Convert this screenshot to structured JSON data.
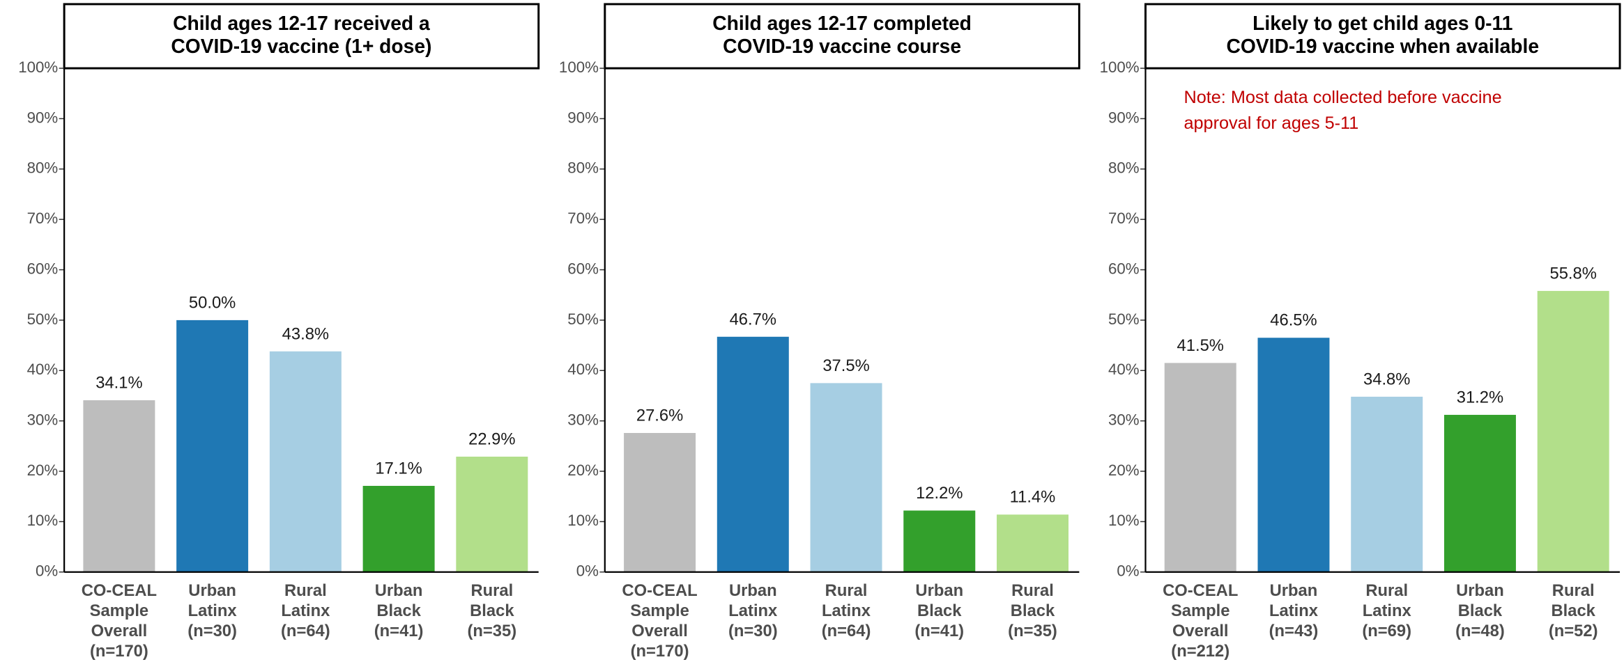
{
  "chart_data": [
    {
      "type": "bar",
      "title": [
        "Child ages 12-17 received a",
        "COVID-19 vaccine (1+ dose)"
      ],
      "categories": [
        [
          "CO-CEAL",
          "Sample",
          "Overall",
          "(n=170)"
        ],
        [
          "Urban",
          "Latinx",
          "(n=30)"
        ],
        [
          "Rural",
          "Latinx",
          "(n=64)"
        ],
        [
          "Urban",
          "Black",
          "(n=41)"
        ],
        [
          "Rural",
          "Black",
          "(n=35)"
        ]
      ],
      "values": [
        34.1,
        50.0,
        43.8,
        17.1,
        22.9
      ],
      "value_labels": [
        "34.1%",
        "50.0%",
        "43.8%",
        "17.1%",
        "22.9%"
      ],
      "colors": [
        "#bdbdbd",
        "#1f78b4",
        "#a6cee3",
        "#33a02c",
        "#b2df8a"
      ],
      "ylim": [
        0,
        100
      ],
      "yticks": [
        {
          "value": 0,
          "label": "0%"
        },
        {
          "value": 10,
          "label": "10%"
        },
        {
          "value": 20,
          "label": "20%"
        },
        {
          "value": 30,
          "label": "30%"
        },
        {
          "value": 40,
          "label": "40%"
        },
        {
          "value": 50,
          "label": "50%"
        },
        {
          "value": 60,
          "label": "60%"
        },
        {
          "value": 70,
          "label": "70%"
        },
        {
          "value": 80,
          "label": "80%"
        },
        {
          "value": 90,
          "label": "90%"
        },
        {
          "value": 100,
          "label": "100%"
        }
      ]
    },
    {
      "type": "bar",
      "title": [
        "Child ages 12-17 completed",
        "COVID-19 vaccine course"
      ],
      "categories": [
        [
          "CO-CEAL",
          "Sample",
          "Overall",
          "(n=170)"
        ],
        [
          "Urban",
          "Latinx",
          "(n=30)"
        ],
        [
          "Rural",
          "Latinx",
          "(n=64)"
        ],
        [
          "Urban",
          "Black",
          "(n=41)"
        ],
        [
          "Rural",
          "Black",
          "(n=35)"
        ]
      ],
      "values": [
        27.6,
        46.7,
        37.5,
        12.2,
        11.4
      ],
      "value_labels": [
        "27.6%",
        "46.7%",
        "37.5%",
        "12.2%",
        "11.4%"
      ],
      "colors": [
        "#bdbdbd",
        "#1f78b4",
        "#a6cee3",
        "#33a02c",
        "#b2df8a"
      ],
      "ylim": [
        0,
        100
      ],
      "yticks": [
        {
          "value": 0,
          "label": "0%"
        },
        {
          "value": 10,
          "label": "10%"
        },
        {
          "value": 20,
          "label": "20%"
        },
        {
          "value": 30,
          "label": "30%"
        },
        {
          "value": 40,
          "label": "40%"
        },
        {
          "value": 50,
          "label": "50%"
        },
        {
          "value": 60,
          "label": "60%"
        },
        {
          "value": 70,
          "label": "70%"
        },
        {
          "value": 80,
          "label": "80%"
        },
        {
          "value": 90,
          "label": "90%"
        },
        {
          "value": 100,
          "label": "100%"
        }
      ]
    },
    {
      "type": "bar",
      "title": [
        "Likely to get child ages 0-11",
        "COVID-19 vaccine when available"
      ],
      "annotation": [
        "Note: Most data collected before vaccine",
        "approval for ages 5-11"
      ],
      "categories": [
        [
          "CO-CEAL",
          "Sample",
          "Overall",
          "(n=212)"
        ],
        [
          "Urban",
          "Latinx",
          "(n=43)"
        ],
        [
          "Rural",
          "Latinx",
          "(n=69)"
        ],
        [
          "Urban",
          "Black",
          "(n=48)"
        ],
        [
          "Rural",
          "Black",
          "(n=52)"
        ]
      ],
      "values": [
        41.5,
        46.5,
        34.8,
        31.2,
        55.8
      ],
      "value_labels": [
        "41.5%",
        "46.5%",
        "34.8%",
        "31.2%",
        "55.8%"
      ],
      "colors": [
        "#bdbdbd",
        "#1f78b4",
        "#a6cee3",
        "#33a02c",
        "#b2df8a"
      ],
      "ylim": [
        0,
        100
      ],
      "yticks": [
        {
          "value": 0,
          "label": "0%"
        },
        {
          "value": 10,
          "label": "10%"
        },
        {
          "value": 20,
          "label": "20%"
        },
        {
          "value": 30,
          "label": "30%"
        },
        {
          "value": 40,
          "label": "40%"
        },
        {
          "value": 50,
          "label": "50%"
        },
        {
          "value": 60,
          "label": "60%"
        },
        {
          "value": 70,
          "label": "70%"
        },
        {
          "value": 80,
          "label": "80%"
        },
        {
          "value": 90,
          "label": "90%"
        },
        {
          "value": 100,
          "label": "100%"
        }
      ]
    }
  ]
}
